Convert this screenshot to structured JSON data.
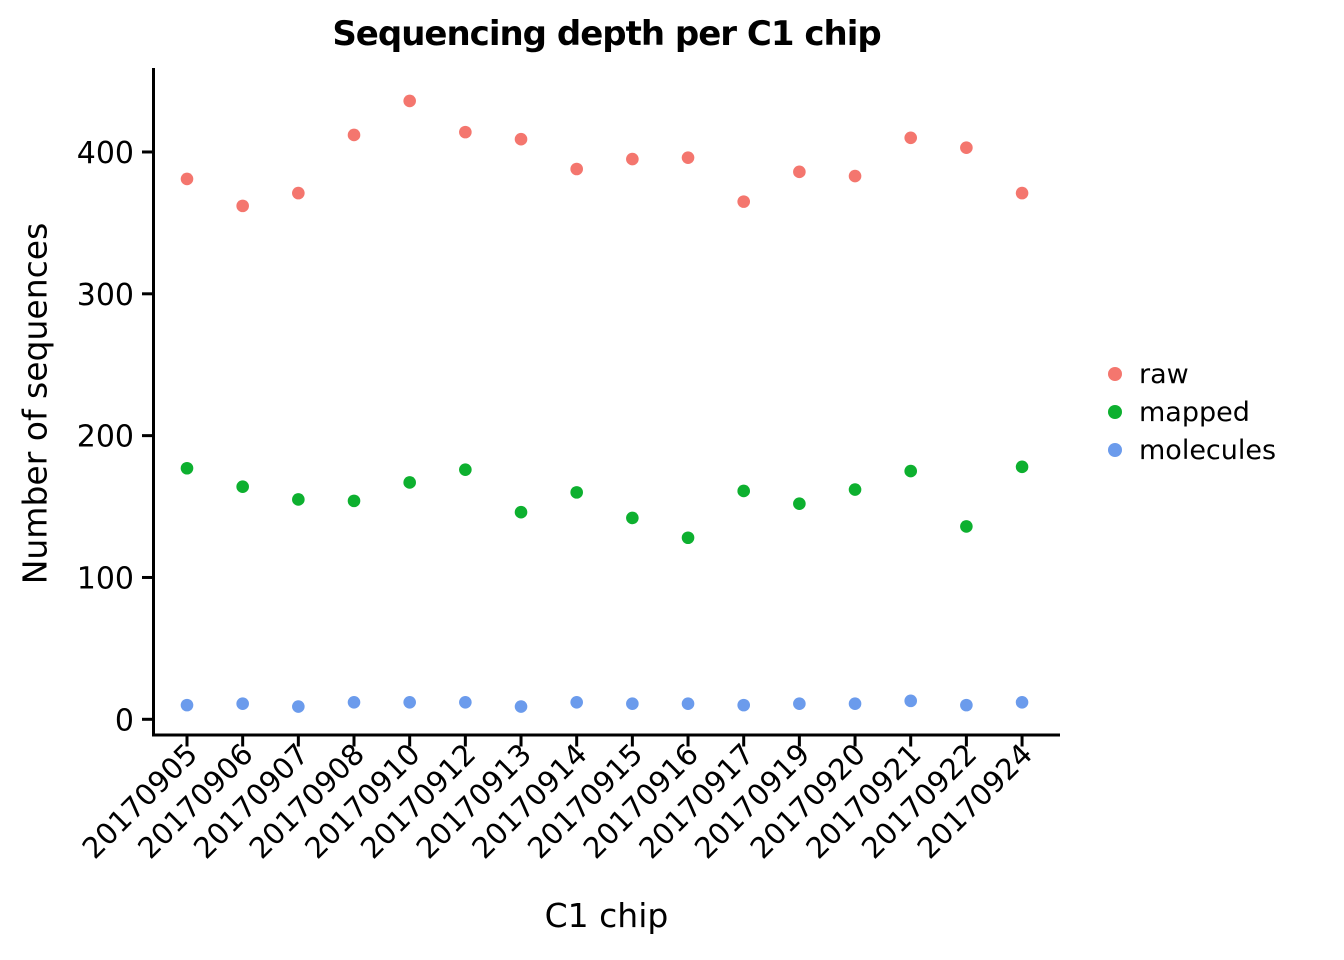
{
  "chart_data": {
    "type": "scatter",
    "title": "Sequencing depth per C1 chip",
    "xlabel": "C1 chip",
    "ylabel": "Number of sequences",
    "categories": [
      "20170905",
      "20170906",
      "20170907",
      "20170908",
      "20170910",
      "20170912",
      "20170913",
      "20170914",
      "20170915",
      "20170916",
      "20170917",
      "20170919",
      "20170920",
      "20170921",
      "20170922",
      "20170924"
    ],
    "series": [
      {
        "name": "raw",
        "color": "#F4766E",
        "values": [
          381,
          362,
          371,
          412,
          436,
          414,
          409,
          388,
          395,
          396,
          365,
          386,
          383,
          410,
          403,
          371
        ]
      },
      {
        "name": "mapped",
        "color": "#0DB02F",
        "values": [
          177,
          164,
          155,
          154,
          167,
          176,
          146,
          160,
          142,
          128,
          161,
          152,
          162,
          175,
          136,
          178
        ]
      },
      {
        "name": "molecules",
        "color": "#6B9BEC",
        "values": [
          10,
          11,
          9,
          12,
          12,
          12,
          9,
          12,
          11,
          11,
          10,
          11,
          11,
          13,
          10,
          12
        ]
      }
    ],
    "y_ticks": [
      0,
      100,
      200,
      300,
      400
    ],
    "ylim": [
      -11,
      459
    ],
    "x_tick_rotation": -45,
    "grid": false,
    "legend_position": "right",
    "axis_color": "#000000",
    "background_color": "#ffffff"
  }
}
